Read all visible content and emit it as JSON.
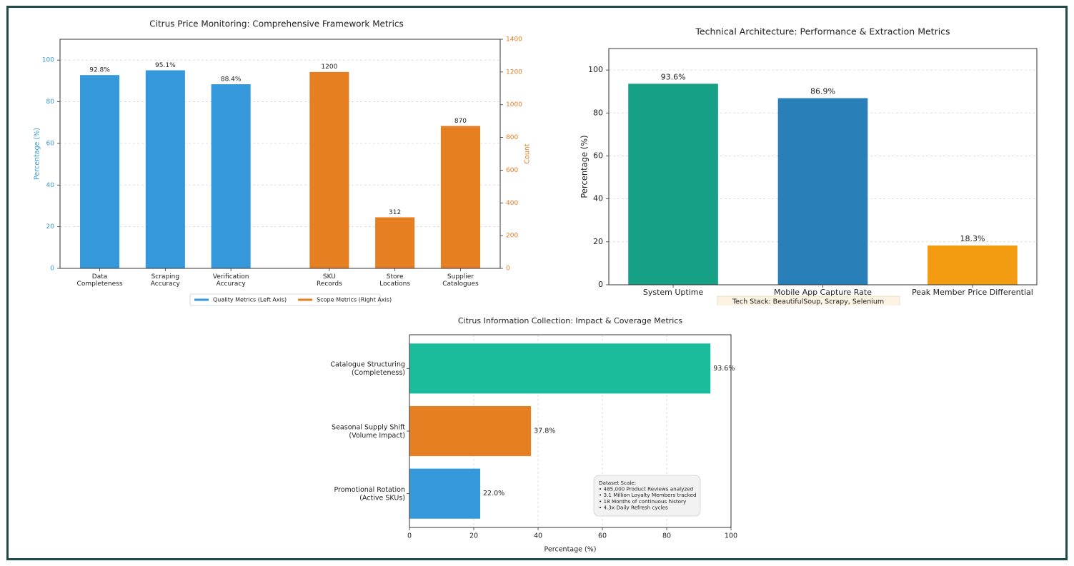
{
  "chart_data": [
    {
      "type": "bar",
      "title": "Citrus Price Monitoring: Comprehensive Framework Metrics",
      "categories": [
        "Data\nCompleteness",
        "Scraping\nAccuracy",
        "Verification\nAccuracy",
        "SKU\nRecords",
        "Store\nLocations",
        "Supplier\nCatalogues"
      ],
      "series": [
        {
          "name": "Quality Metrics (Left Axis)",
          "color": "#3498db",
          "values": [
            92.8,
            95.1,
            88.4,
            null,
            null,
            null
          ],
          "value_labels": [
            "92.8%",
            "95.1%",
            "88.4%",
            null,
            null,
            null
          ]
        },
        {
          "name": "Scope Metrics (Right Axis)",
          "color": "#e67e22",
          "axis": "y2",
          "values": [
            null,
            null,
            null,
            1200,
            312,
            870
          ]
        }
      ],
      "ylabel": "Percentage (%)",
      "y2label": "Count",
      "ylim": [
        0,
        110
      ],
      "yticks": [
        0,
        20,
        40,
        60,
        80,
        100
      ],
      "y2lim": [
        0,
        1400
      ],
      "y2ticks": [
        0,
        200,
        400,
        600,
        800,
        1000,
        1200,
        1400
      ],
      "grid": true,
      "legend": "bottom"
    },
    {
      "type": "bar",
      "title": "Technical Architecture: Performance & Extraction Metrics",
      "categories": [
        "System Uptime",
        "Mobile App Capture Rate",
        "Peak Member Price Differential"
      ],
      "values": [
        93.6,
        86.9,
        18.3
      ],
      "value_labels": [
        "93.6%",
        "86.9%",
        "18.3%"
      ],
      "colors": [
        "#16a085",
        "#2980b9",
        "#f39c12"
      ],
      "ylabel": "Percentage (%)",
      "ylim": [
        0,
        110
      ],
      "yticks": [
        0,
        20,
        40,
        60,
        80,
        100
      ],
      "grid": true,
      "annotation": "Tech Stack: BeautifulSoup, Scrapy, Selenium"
    },
    {
      "type": "barh",
      "title": "Citrus Information Collection: Impact & Coverage Metrics",
      "categories": [
        "Catalogue Structuring\n(Completeness)",
        "Seasonal Supply Shift\n(Volume Impact)",
        "Promotional Rotation\n(Active SKUs)"
      ],
      "values": [
        93.6,
        37.8,
        22.0
      ],
      "value_labels": [
        "93.6%",
        "37.8%",
        "22.0%"
      ],
      "colors": [
        "#1abc9c",
        "#e67e22",
        "#3498db"
      ],
      "xlabel": "Percentage (%)",
      "xlim": [
        0,
        100
      ],
      "xticks": [
        0,
        20,
        40,
        60,
        80,
        100
      ],
      "grid": true,
      "annotation": [
        "Dataset Scale:",
        "• 485,000 Product Reviews analyzed",
        "• 3.1 Million Loyalty Members tracked",
        "• 18 Months of continuous history",
        "• 4.3x Daily Refresh cycles"
      ]
    }
  ]
}
